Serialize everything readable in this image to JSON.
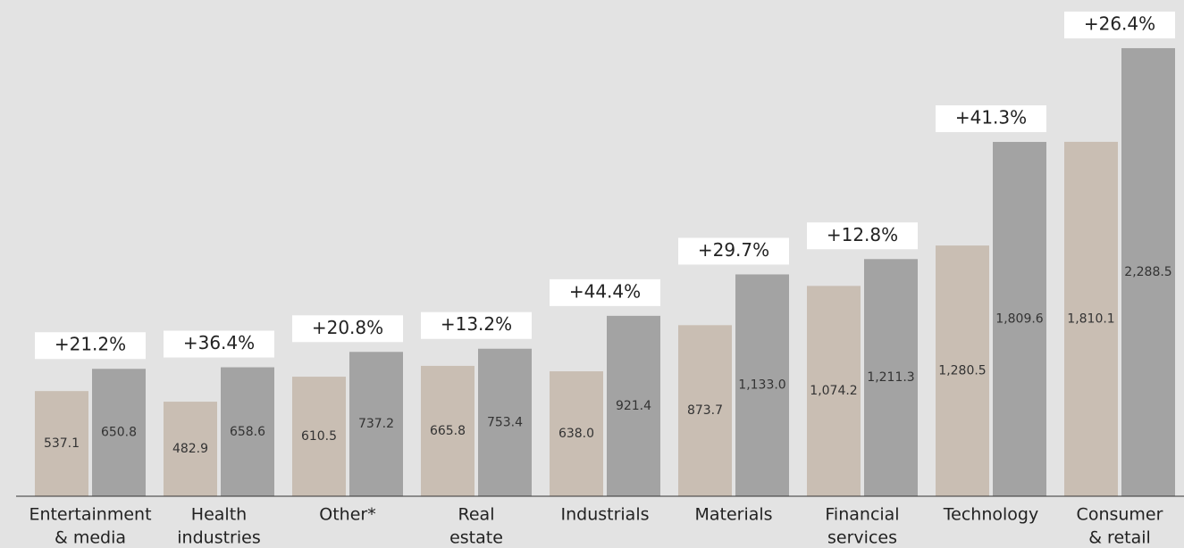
{
  "chart_data": {
    "type": "bar",
    "categories": [
      [
        "Entertainment",
        "& media"
      ],
      [
        "Health",
        "industries"
      ],
      [
        "Other*"
      ],
      [
        "Real",
        "estate"
      ],
      [
        "Industrials"
      ],
      [
        "Materials"
      ],
      [
        "Financial",
        "services"
      ],
      [
        "Technology"
      ],
      [
        "Consumer",
        "& retail"
      ]
    ],
    "series": [
      {
        "color": "#c9beb3",
        "values": [
          537.1,
          482.9,
          610.5,
          665.8,
          638.0,
          873.7,
          1074.2,
          1280.5,
          1810.1
        ],
        "value_labels": [
          "537.1",
          "482.9",
          "610.5",
          "665.8",
          "638.0",
          "873.7",
          "1,074.2",
          "1,280.5",
          "1,810.1"
        ]
      },
      {
        "color": "#a3a3a3",
        "values": [
          650.8,
          658.6,
          737.2,
          753.4,
          921.4,
          1133.0,
          1211.3,
          1809.6,
          2288.5
        ],
        "value_labels": [
          "650.8",
          "658.6",
          "737.2",
          "753.4",
          "921.4",
          "1,133.0",
          "1,211.3",
          "1,809.6",
          "2,288.5"
        ]
      }
    ],
    "annotations": [
      "+21.2%",
      "+36.4%",
      "+20.8%",
      "+13.2%",
      "+44.4%",
      "+29.7%",
      "+12.8%",
      "+41.3%",
      "+26.4%"
    ],
    "ylim": [
      0,
      2400
    ]
  }
}
